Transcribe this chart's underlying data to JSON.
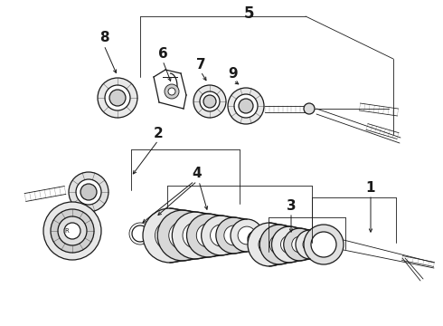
{
  "background_color": "#ffffff",
  "line_color": "#1a1a1a",
  "fig_width": 4.9,
  "fig_height": 3.6,
  "dpi": 100,
  "lw_main": 0.9,
  "lw_thin": 0.6,
  "lw_thick": 1.2
}
